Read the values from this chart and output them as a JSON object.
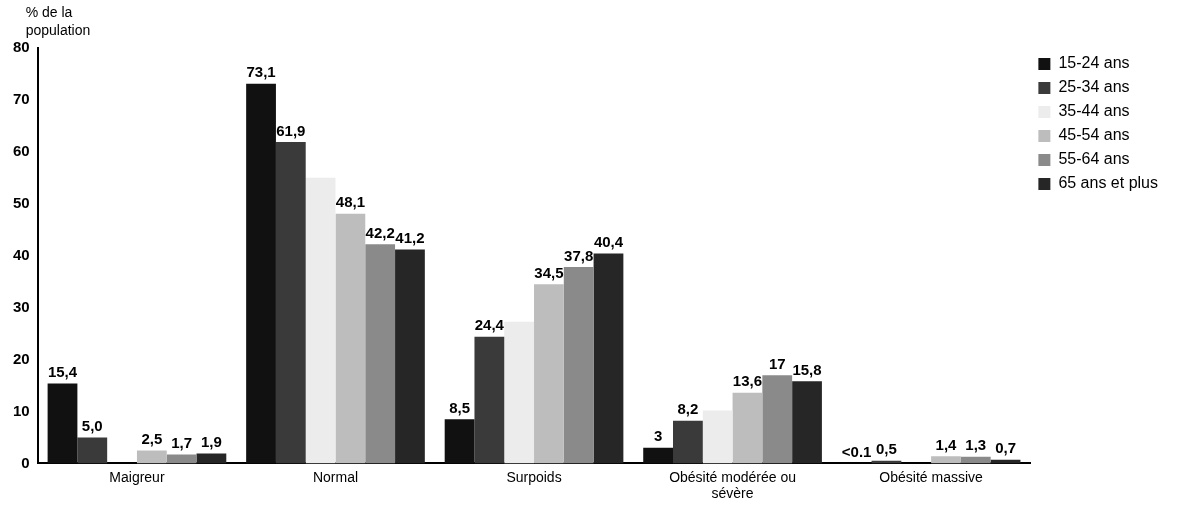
{
  "chart_data": {
    "type": "bar",
    "ylabel": "% de la population",
    "categories": [
      "Maigreur",
      "Normal",
      "Surpoids",
      "Obésité modérée ou sévère",
      "Obésité massive"
    ],
    "series": [
      {
        "name": "15-24 ans",
        "color": "#111111",
        "values": [
          15.4,
          73.1,
          8.5,
          3,
          0.05
        ],
        "value_labels": [
          "15,4",
          "73,1",
          "8,5",
          "3",
          "<0.1"
        ]
      },
      {
        "name": "25-34 ans",
        "color": "#3a3a3a",
        "values": [
          5.0,
          61.9,
          24.4,
          8.2,
          0.5
        ],
        "value_labels": [
          "5,0",
          "61,9",
          "24,4",
          "8,2",
          "0,5"
        ]
      },
      {
        "name": "35-44 ans",
        "color": "#ececec",
        "values": [
          null,
          55,
          27.3,
          10.2,
          null
        ],
        "value_labels": [
          null,
          null,
          null,
          null,
          null
        ]
      },
      {
        "name": "45-54 ans",
        "color": "#bdbdbd",
        "values": [
          2.5,
          48.1,
          34.5,
          13.6,
          1.4
        ],
        "value_labels": [
          "2,5",
          "48,1",
          "34,5",
          "13,6",
          "1,4"
        ]
      },
      {
        "name": "55-64 ans",
        "color": "#8a8a8a",
        "values": [
          1.7,
          42.2,
          37.8,
          17,
          1.3
        ],
        "value_labels": [
          "1,7",
          "42,2",
          "37,8",
          "17",
          "1,3"
        ]
      },
      {
        "name": "65 ans et plus",
        "color": "#262626",
        "values": [
          1.9,
          41.2,
          40.4,
          15.8,
          0.7
        ],
        "value_labels": [
          "1,9",
          "41,2",
          "40,4",
          "15,8",
          "0,7"
        ]
      }
    ],
    "ylim": [
      0,
      80
    ],
    "yticks": [
      0,
      10,
      20,
      30,
      40,
      50,
      60,
      70,
      80
    ],
    "grid": false,
    "legend": "top right"
  }
}
